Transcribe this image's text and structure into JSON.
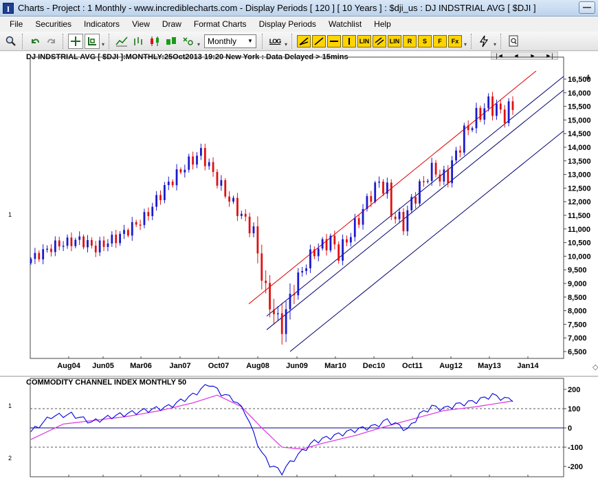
{
  "window": {
    "title": "Charts - Project : 1 Monthly - www.incrediblecharts.com - Display Periods  [ 120 ]  [ 10 Years ] : $dji_us : DJ INDSTRIAL AVG  [ $DJI ]",
    "minimize_label": "—"
  },
  "menu": [
    "File",
    "Securities",
    "Indicators",
    "View",
    "Draw",
    "Format Charts",
    "Display Periods",
    "Watchlist",
    "Help"
  ],
  "toolbar": {
    "period_select": "Monthly",
    "log_label": "LOG",
    "yellow_buttons": [
      "LIN",
      "LIN",
      "R",
      "S",
      "F",
      "Fx"
    ]
  },
  "price_chart": {
    "header": "DJ INDSTRIAL AVG [ $DJI ]:MONTHLY:25Oct2013 19:20 New York : Data Delayed > 15mins",
    "left_marker": "1",
    "right_top_label": "4",
    "nav": [
      "|◄",
      "◄",
      "►",
      "►|"
    ],
    "y_ticks": [
      "16,500",
      "16,000",
      "15,500",
      "15,000",
      "14,500",
      "14,000",
      "13,500",
      "13,000",
      "12,500",
      "12,000",
      "11,500",
      "11,000",
      "10,500",
      "10,000",
      "9,500",
      "9,000",
      "8,500",
      "8,000",
      "7,500",
      "7,000",
      "6,500"
    ],
    "x_ticks": [
      "Aug04",
      "Jun05",
      "Mar06",
      "Jan07",
      "Oct07",
      "Aug08",
      "Jun09",
      "Mar10",
      "Dec10",
      "Oct11",
      "Aug12",
      "May13",
      "Jan14"
    ]
  },
  "indicator": {
    "header": "COMMODITY CHANNEL INDEX MONTHLY 50",
    "left_marker_top": "1",
    "left_marker_bottom": "2",
    "y_ticks": [
      "200",
      "100",
      "0",
      "-100",
      "-200"
    ]
  },
  "colors": {
    "up_bar": "#1a1acc",
    "down_bar": "#e01010",
    "trend_red": "#e00000",
    "trend_navy": "#00006e",
    "cci_line": "#0000dd",
    "cci_signal": "#e040e0"
  }
}
